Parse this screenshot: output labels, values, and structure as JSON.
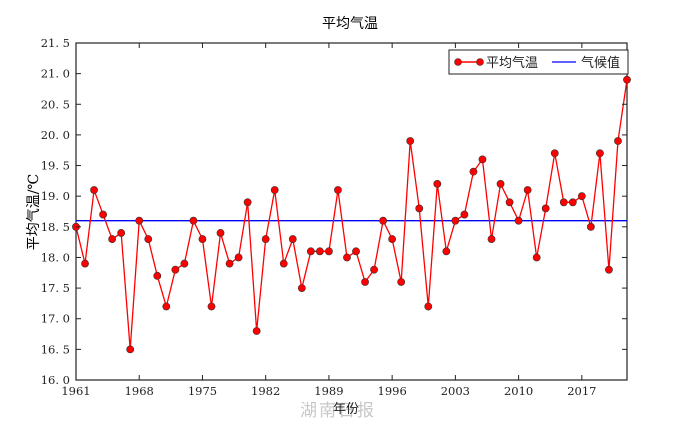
{
  "chart_data": {
    "type": "line",
    "title": "平均气温",
    "xlabel": "年份",
    "ylabel": "平均气温/℃",
    "xlim": [
      1961,
      2022
    ],
    "ylim": [
      16.0,
      21.5
    ],
    "grid": false,
    "legend_position": "upper right",
    "x_ticks": [
      1961,
      1968,
      1975,
      1982,
      1989,
      1996,
      2003,
      2010,
      2017
    ],
    "y_ticks": [
      16.0,
      16.5,
      17.0,
      17.5,
      18.0,
      18.5,
      19.0,
      19.5,
      20.0,
      20.5,
      21.0,
      21.5
    ],
    "x": [
      1961,
      1962,
      1963,
      1964,
      1965,
      1966,
      1967,
      1968,
      1969,
      1970,
      1971,
      1972,
      1973,
      1974,
      1975,
      1976,
      1977,
      1978,
      1979,
      1980,
      1981,
      1982,
      1983,
      1984,
      1985,
      1986,
      1987,
      1988,
      1989,
      1990,
      1991,
      1992,
      1993,
      1994,
      1995,
      1996,
      1997,
      1998,
      1999,
      2000,
      2001,
      2002,
      2003,
      2004,
      2005,
      2006,
      2007,
      2008,
      2009,
      2010,
      2011,
      2012,
      2013,
      2014,
      2015,
      2016,
      2017,
      2018,
      2019,
      2020,
      2021,
      2022
    ],
    "series": [
      {
        "name": "平均气温",
        "color": "#ff0000",
        "marker": "circle",
        "values": [
          18.5,
          17.9,
          19.1,
          18.7,
          18.3,
          18.4,
          16.5,
          18.6,
          18.3,
          17.7,
          17.2,
          17.8,
          17.9,
          18.6,
          18.3,
          17.2,
          18.4,
          17.9,
          18.0,
          18.9,
          16.8,
          18.3,
          19.1,
          17.9,
          18.3,
          17.5,
          18.1,
          18.1,
          18.1,
          19.1,
          18.0,
          18.1,
          17.6,
          17.8,
          18.6,
          18.3,
          17.6,
          19.9,
          18.8,
          17.2,
          19.2,
          18.1,
          18.6,
          18.7,
          19.4,
          19.6,
          18.3,
          19.2,
          18.9,
          18.6,
          19.1,
          18.0,
          18.8,
          19.7,
          18.9,
          18.9,
          19.0,
          18.5,
          19.7,
          17.8,
          19.9,
          20.9
        ]
      },
      {
        "name": "气候值",
        "color": "#0000ff",
        "marker": "none",
        "constant": 18.6
      }
    ]
  },
  "watermark": "湖南日报"
}
